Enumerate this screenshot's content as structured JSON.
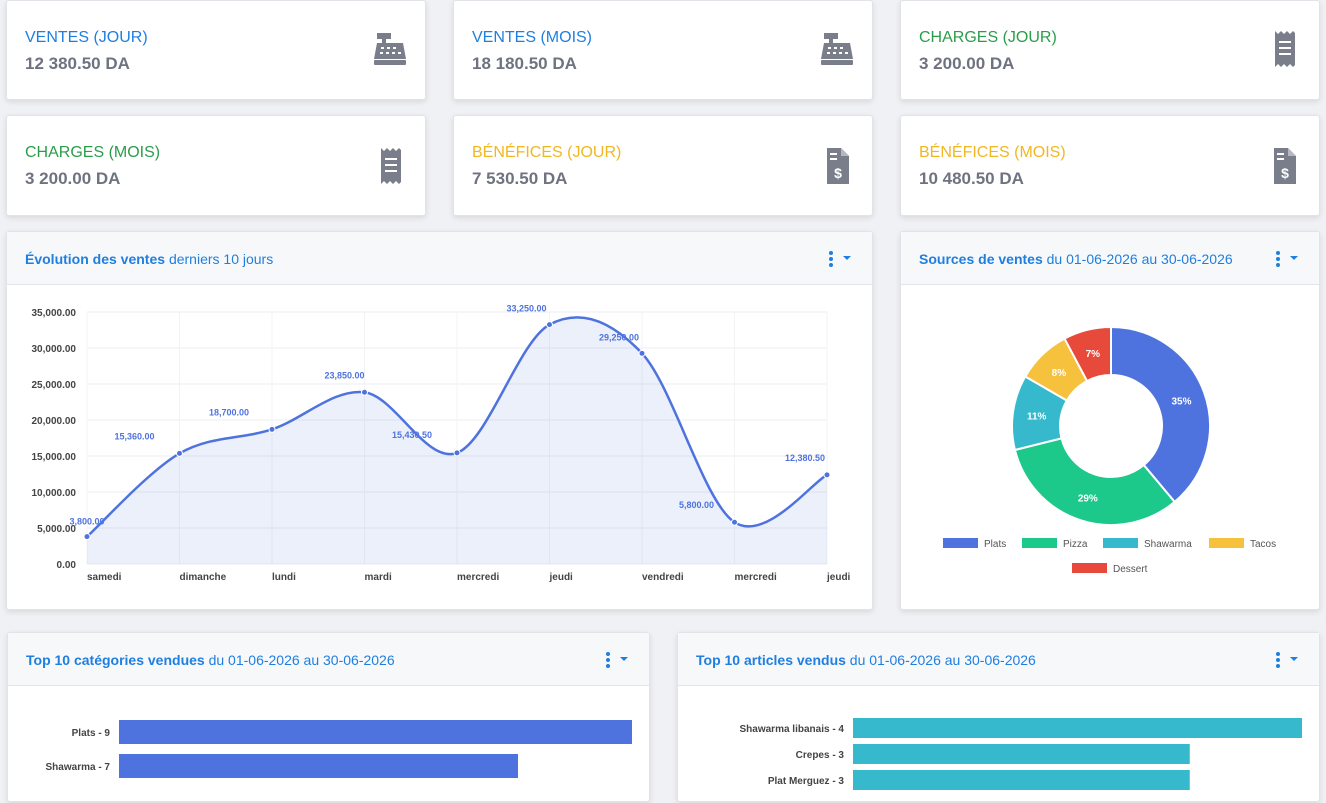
{
  "stats": [
    {
      "label": "VENTES (JOUR)",
      "value": "12 380.50 DA",
      "color": "#1f7fe0",
      "icon": "cash-register-icon"
    },
    {
      "label": "VENTES (MOIS)",
      "value": "18 180.50 DA",
      "color": "#1f7fe0",
      "icon": "cash-register-icon"
    },
    {
      "label": "CHARGES (JOUR)",
      "value": "3 200.00 DA",
      "color": "#2a9d4a",
      "icon": "receipt-icon"
    },
    {
      "label": "CHARGES (MOIS)",
      "value": "3 200.00 DA",
      "color": "#2a9d4a",
      "icon": "receipt-icon"
    },
    {
      "label": "BÉNÉFICES (JOUR)",
      "value": "7 530.50 DA",
      "color": "#f1b722",
      "icon": "invoice-dollar-icon"
    },
    {
      "label": "BÉNÉFICES (MOIS)",
      "value": "10 480.50 DA",
      "color": "#f1b722",
      "icon": "invoice-dollar-icon"
    }
  ],
  "panels": {
    "evolution": {
      "title_bold": "Évolution des ventes",
      "title_rest": "derniers 10 jours"
    },
    "sources": {
      "title_bold": "Sources de ventes",
      "title_rest": "du 01-06-2026 au 30-06-2026"
    },
    "top_categories": {
      "title_bold": "Top 10 catégories vendues",
      "title_rest": "du 01-06-2026 au 30-06-2026"
    },
    "top_articles": {
      "title_bold": "Top 10 articles vendus",
      "title_rest": "du 01-06-2026 au 30-06-2026"
    }
  },
  "colors": {
    "accent": "#1f7fe0",
    "line": "#4e73df"
  },
  "chart_data": [
    {
      "type": "line",
      "categories": [
        "samedi",
        "dimanche",
        "lundi",
        "mardi",
        "mercredi",
        "jeudi",
        "vendredi",
        "mercredi",
        "jeudi"
      ],
      "values": [
        3800,
        15360,
        18700,
        23850,
        15430.5,
        33250,
        29250,
        5800,
        12380.5
      ],
      "data_labels": [
        "3,800.00",
        "15,360.00",
        "18,700.00",
        "23,850.00",
        "15,430.50",
        "33,250.00",
        "29,250.00",
        "5,800.00",
        "12,380.50"
      ],
      "y_ticks": [
        "0.00",
        "5,000.00",
        "10,000.00",
        "15,000.00",
        "20,000.00",
        "25,000.00",
        "30,000.00",
        "35,000.00"
      ],
      "ylim": [
        0,
        35000
      ],
      "grid": true,
      "color": "#4e73df"
    },
    {
      "type": "pie",
      "categories": [
        "Plats",
        "Pizza",
        "Shawarma",
        "Tacos",
        "Dessert"
      ],
      "values": [
        35,
        29,
        11,
        8,
        7
      ],
      "labels": [
        "35%",
        "29%",
        "11%",
        "8%",
        "7%"
      ],
      "colors": [
        "#4e73df",
        "#1cc88a",
        "#36b9cc",
        "#f6c23e",
        "#e74a3b"
      ],
      "legend": "bottom"
    },
    {
      "type": "bar",
      "orientation": "horizontal",
      "categories": [
        "Plats - 9",
        "Shawarma - 7"
      ],
      "values": [
        9,
        7
      ],
      "xlim": [
        0,
        9
      ],
      "color": "#4e73df"
    },
    {
      "type": "bar",
      "orientation": "horizontal",
      "categories": [
        "Shawarma libanais - 4",
        "Crepes - 3",
        "Plat Merguez - 3"
      ],
      "values": [
        4,
        3,
        3
      ],
      "xlim": [
        0,
        4
      ],
      "color": "#36b9cc"
    }
  ]
}
